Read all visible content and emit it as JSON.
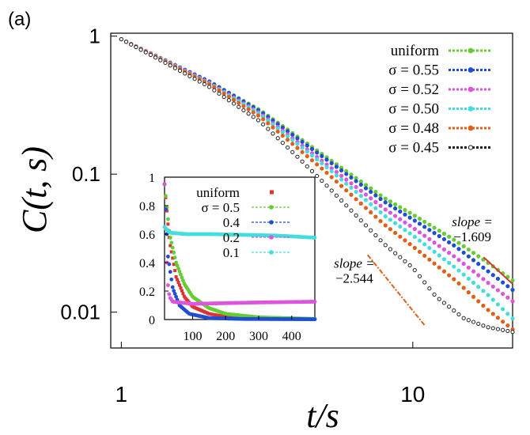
{
  "panel_label": "(a)",
  "chart_data": [
    {
      "type": "scatter",
      "scale": "log-log",
      "xlabel": "t/s",
      "ylabel": "C(t, s)",
      "xlim": [
        0.92,
        22
      ],
      "ylim": [
        0.0055,
        1.05
      ],
      "x_ticks": [
        {
          "v": 1,
          "label": "1"
        },
        {
          "v": 10,
          "label": "10"
        }
      ],
      "y_ticks": [
        {
          "v": 1,
          "label": "1"
        },
        {
          "v": 0.1,
          "label": "0.1"
        },
        {
          "v": 0.01,
          "label": "0.01"
        }
      ],
      "legend_position": "top-right",
      "series": [
        {
          "name": "uniform",
          "label": "uniform",
          "color": "#66cc33",
          "marker": "dot",
          "points": [
            [
              1,
              0.95
            ],
            [
              1.5,
              0.63
            ],
            [
              2,
              0.47
            ],
            [
              3,
              0.29
            ],
            [
              5,
              0.135
            ],
            [
              8,
              0.067
            ],
            [
              10,
              0.051
            ],
            [
              14,
              0.033
            ],
            [
              18,
              0.023
            ],
            [
              22,
              0.017
            ]
          ]
        },
        {
          "name": "sigma 0.55",
          "label": "σ = 0.55",
          "color": "#1f4fd1",
          "marker": "dot",
          "points": [
            [
              1,
              0.95
            ],
            [
              1.5,
              0.63
            ],
            [
              2,
              0.47
            ],
            [
              3,
              0.285
            ],
            [
              5,
              0.13
            ],
            [
              8,
              0.063
            ],
            [
              10,
              0.047
            ],
            [
              14,
              0.03
            ],
            [
              18,
              0.02
            ],
            [
              22,
              0.0145
            ]
          ]
        },
        {
          "name": "sigma 0.52",
          "label": "σ = 0.52",
          "color": "#dd55dd",
          "marker": "dot",
          "points": [
            [
              1,
              0.95
            ],
            [
              1.5,
              0.625
            ],
            [
              2,
              0.46
            ],
            [
              3,
              0.275
            ],
            [
              5,
              0.12
            ],
            [
              8,
              0.056
            ],
            [
              10,
              0.041
            ],
            [
              14,
              0.025
            ],
            [
              18,
              0.0165
            ],
            [
              22,
              0.012
            ]
          ]
        },
        {
          "name": "sigma 0.50",
          "label": "σ = 0.50",
          "color": "#44dddd",
          "marker": "dot",
          "points": [
            [
              1,
              0.95
            ],
            [
              1.5,
              0.62
            ],
            [
              2,
              0.455
            ],
            [
              3,
              0.27
            ],
            [
              5,
              0.115
            ],
            [
              8,
              0.05
            ],
            [
              10,
              0.036
            ],
            [
              14,
              0.021
            ],
            [
              18,
              0.0135
            ],
            [
              22,
              0.009
            ]
          ]
        },
        {
          "name": "sigma 0.48",
          "label": "σ = 0.48",
          "color": "#e0601a",
          "marker": "dot",
          "points": [
            [
              1,
              0.95
            ],
            [
              1.5,
              0.615
            ],
            [
              2,
              0.45
            ],
            [
              3,
              0.26
            ],
            [
              5,
              0.105
            ],
            [
              8,
              0.043
            ],
            [
              10,
              0.03
            ],
            [
              14,
              0.017
            ],
            [
              18,
              0.0105
            ],
            [
              22,
              0.0075
            ]
          ]
        },
        {
          "name": "sigma 0.45",
          "label": "σ = 0.45",
          "color": "#222222",
          "marker": "ring",
          "points": [
            [
              1,
              0.95
            ],
            [
              1.5,
              0.6
            ],
            [
              2,
              0.43
            ],
            [
              3,
              0.24
            ],
            [
              4,
              0.135
            ],
            [
              5,
              0.085
            ],
            [
              8,
              0.031
            ],
            [
              10,
              0.021
            ],
            [
              12,
              0.013
            ],
            [
              15,
              0.009
            ],
            [
              18,
              0.0078
            ],
            [
              22,
              0.0072
            ]
          ]
        }
      ],
      "annotations": [
        {
          "text_top": "slope =",
          "text_bottom": "−1.609",
          "x": 16,
          "y": 0.042,
          "color": "#dd3333",
          "line": [
            [
              17.5,
              0.025
            ],
            [
              22,
              0.016
            ]
          ]
        },
        {
          "text_top": "slope =",
          "text_bottom": "−2.544",
          "x": 6.3,
          "y": 0.021,
          "color": "#e0601a",
          "line": [
            [
              7,
              0.026
            ],
            [
              11,
              0.008
            ]
          ]
        }
      ]
    },
    {
      "type": "line",
      "inset": true,
      "xlim": [
        15,
        470
      ],
      "ylim": [
        0,
        1
      ],
      "x_ticks": [
        {
          "v": 100,
          "label": "100"
        },
        {
          "v": 200,
          "label": "200"
        },
        {
          "v": 300,
          "label": "300"
        },
        {
          "v": 400,
          "label": "400"
        }
      ],
      "y_ticks": [
        {
          "v": 0,
          "label": "0"
        },
        {
          "v": 0.2,
          "label": "0.2"
        },
        {
          "v": 0.4,
          "label": "0.4"
        },
        {
          "v": 0.6,
          "label": "0.6"
        },
        {
          "v": 0.8,
          "label": "0.8"
        },
        {
          "v": 1,
          "label": "1"
        }
      ],
      "legend_position": "top-right",
      "series": [
        {
          "name": "uniform",
          "label": "uniform",
          "color": "#dd3333",
          "marker": "square",
          "points": [
            [
              15,
              0.95
            ],
            [
              30,
              0.55
            ],
            [
              50,
              0.3
            ],
            [
              75,
              0.16
            ],
            [
              100,
              0.09
            ],
            [
              150,
              0.04
            ],
            [
              200,
              0.02
            ],
            [
              300,
              0.008
            ],
            [
              470,
              0.004
            ]
          ]
        },
        {
          "name": "0.5",
          "label": "σ = 0.5",
          "color": "#66cc33",
          "marker": "dot",
          "points": [
            [
              15,
              0.95
            ],
            [
              30,
              0.6
            ],
            [
              50,
              0.4
            ],
            [
              75,
              0.25
            ],
            [
              100,
              0.16
            ],
            [
              150,
              0.08
            ],
            [
              200,
              0.04
            ],
            [
              300,
              0.015
            ],
            [
              470,
              0.004
            ]
          ]
        },
        {
          "name": "0.4",
          "label": "0.4",
          "color": "#1f4fd1",
          "marker": "dot",
          "points": [
            [
              15,
              0.95
            ],
            [
              25,
              0.45
            ],
            [
              40,
              0.22
            ],
            [
              60,
              0.1
            ],
            [
              90,
              0.04
            ],
            [
              150,
              0.01
            ],
            [
              250,
              0.004
            ],
            [
              470,
              0.002
            ]
          ]
        },
        {
          "name": "0.2",
          "label": "0.2",
          "color": "#dd55dd",
          "marker": "dot",
          "points": [
            [
              15,
              0.95
            ],
            [
              20,
              0.5
            ],
            [
              25,
              0.25
            ],
            [
              30,
              0.16
            ],
            [
              40,
              0.125
            ],
            [
              100,
              0.11
            ],
            [
              200,
              0.115
            ],
            [
              300,
              0.12
            ],
            [
              470,
              0.125
            ]
          ]
        },
        {
          "name": "0.1",
          "label": "0.1",
          "color": "#44dddd",
          "marker": "dot",
          "points": [
            [
              15,
              0.65
            ],
            [
              30,
              0.61
            ],
            [
              80,
              0.6
            ],
            [
              150,
              0.6
            ],
            [
              250,
              0.595
            ],
            [
              350,
              0.59
            ],
            [
              470,
              0.575
            ]
          ]
        }
      ]
    }
  ]
}
